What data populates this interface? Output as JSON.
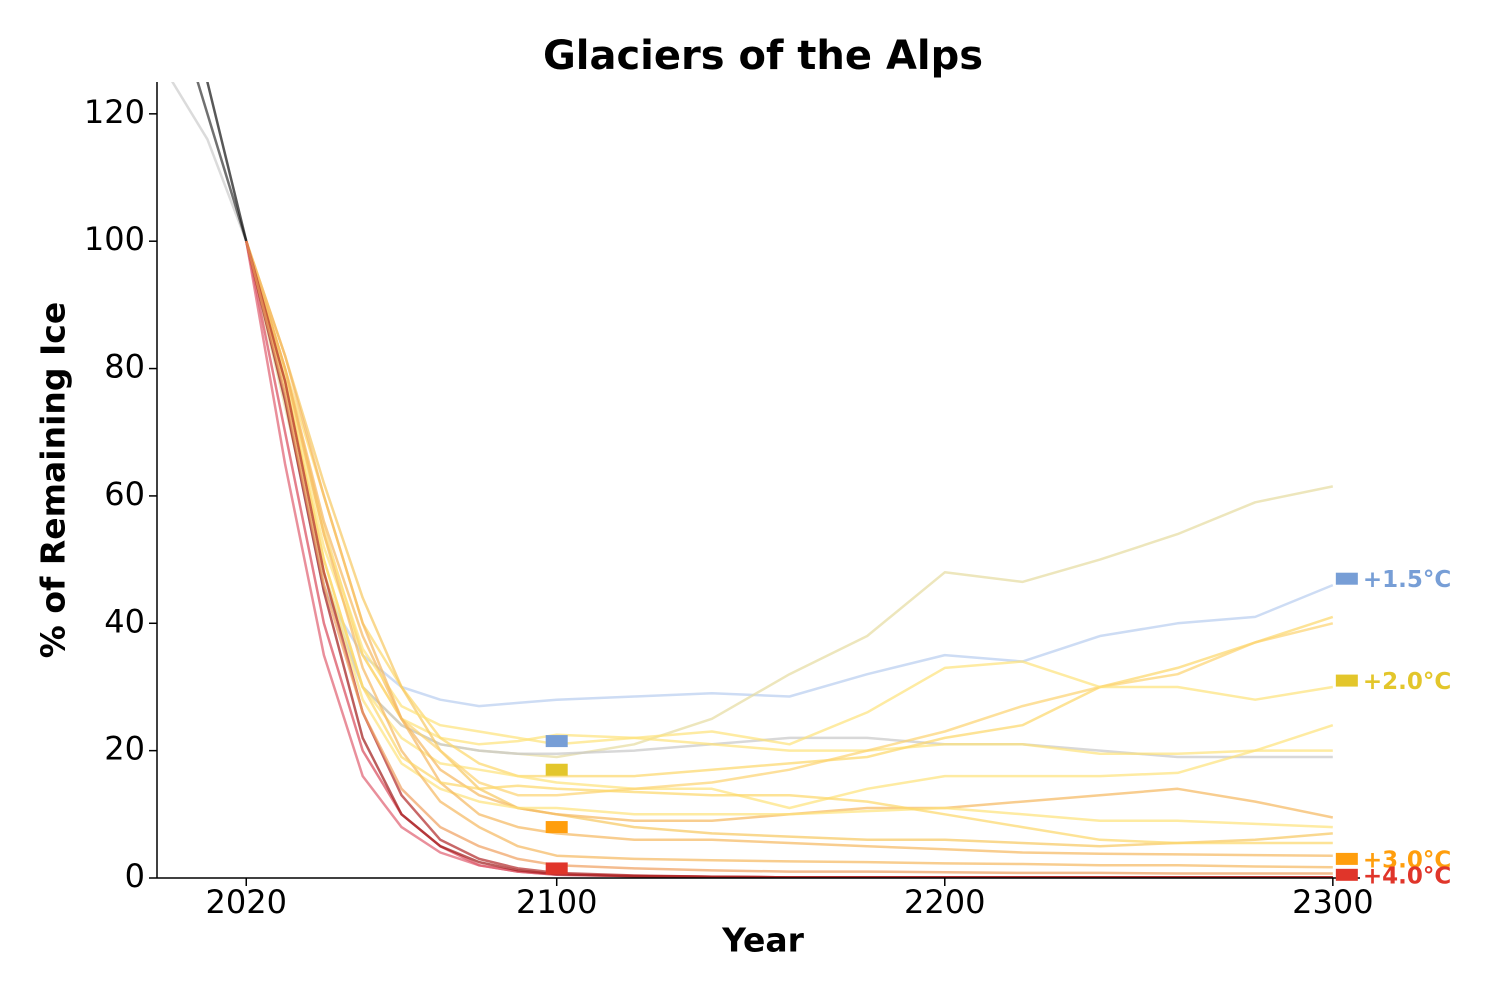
{
  "chart_data": {
    "type": "line",
    "title": "Glaciers of the Alps",
    "x_label": "Year",
    "y_label": "% of Remaining Ice",
    "xlim": [
      1997,
      2307
    ],
    "ylim": [
      0,
      125
    ],
    "xticks": [
      2020,
      2100,
      2200,
      2300
    ],
    "yticks": [
      0,
      20,
      40,
      60,
      80,
      100,
      120
    ],
    "x": [
      2000,
      2010,
      2020,
      2030,
      2040,
      2050,
      2060,
      2070,
      2080,
      2090,
      2100,
      2120,
      2140,
      2160,
      2180,
      2200,
      2220,
      2240,
      2260,
      2280,
      2300
    ],
    "series": [
      {
        "color": "#cccccc",
        "values": [
          126,
          116,
          100,
          null,
          null,
          null,
          null,
          null,
          null,
          null,
          null,
          null,
          null,
          null,
          null,
          null,
          null,
          null,
          null,
          null,
          null
        ]
      },
      {
        "color": "#333333",
        "values": [
          140,
          120,
          100,
          null,
          null,
          null,
          null,
          null,
          null,
          null,
          null,
          null,
          null,
          null,
          null,
          null,
          null,
          null,
          null,
          null,
          null
        ]
      },
      {
        "color": "#111111",
        "values": [
          150,
          125,
          100,
          null,
          null,
          null,
          null,
          null,
          null,
          null,
          null,
          null,
          null,
          null,
          null,
          null,
          null,
          null,
          null,
          null,
          null
        ]
      },
      {
        "color": "#b8cdf0",
        "values": [
          null,
          null,
          100,
          75,
          45,
          35,
          30,
          28,
          27,
          27.5,
          28,
          28.5,
          29,
          28.5,
          32,
          35,
          34,
          38,
          40,
          41,
          46
        ]
      },
      {
        "color": "#e6dca0",
        "values": [
          null,
          null,
          100,
          74,
          48,
          30,
          24,
          21,
          20,
          19.5,
          19,
          21,
          25,
          32,
          38,
          48,
          46.5,
          50,
          54,
          59,
          61.5
        ]
      },
      {
        "color": "#c8c8c8",
        "values": [
          null,
          null,
          100,
          76,
          46,
          30,
          24,
          21,
          20,
          19.5,
          19.5,
          20,
          21,
          22,
          22,
          21,
          21,
          20,
          19,
          19,
          19
        ]
      },
      {
        "color": "#fde27a",
        "values": [
          null,
          null,
          100,
          78,
          52,
          35,
          25,
          22,
          21,
          21.5,
          22.5,
          22,
          21,
          20,
          20,
          21,
          21,
          19.5,
          19.5,
          20,
          20
        ]
      },
      {
        "color": "#fcd76a",
        "values": [
          null,
          null,
          100,
          80,
          60,
          40,
          30,
          22,
          18,
          16,
          16,
          16,
          17,
          18,
          19,
          22,
          24,
          30,
          33,
          37,
          41
        ]
      },
      {
        "color": "#fde27a",
        "values": [
          null,
          null,
          100,
          78,
          50,
          30,
          22,
          18,
          17,
          16,
          15,
          14,
          14,
          11,
          14,
          16,
          16,
          16,
          16.5,
          20,
          24
        ]
      },
      {
        "color": "#f7c860",
        "values": [
          null,
          null,
          100,
          82,
          62,
          44,
          30,
          20,
          14,
          11,
          10,
          8,
          7,
          6.5,
          6,
          6,
          5.5,
          5,
          5.5,
          6,
          7
        ]
      },
      {
        "color": "#fcd370",
        "values": [
          null,
          null,
          100,
          80,
          55,
          35,
          25,
          20,
          15,
          13,
          13,
          14,
          15,
          17,
          20,
          23,
          27,
          30,
          32,
          37,
          40
        ]
      },
      {
        "color": "#f5b860",
        "values": [
          null,
          null,
          100,
          80,
          56,
          38,
          25,
          17,
          13,
          11,
          10,
          9,
          9,
          10,
          11,
          11,
          12,
          13,
          14,
          12,
          9.5
        ]
      },
      {
        "color": "#fde27a",
        "values": [
          null,
          null,
          100,
          77,
          48,
          28,
          18,
          14,
          12,
          11,
          11,
          10,
          10,
          10,
          10.5,
          11,
          10,
          9,
          9,
          8.5,
          8
        ]
      },
      {
        "color": "#fde27a",
        "values": [
          null,
          null,
          100,
          79,
          54,
          36,
          27,
          24,
          23,
          22,
          21,
          22,
          23,
          21,
          26,
          33,
          34,
          30,
          30,
          28,
          30
        ]
      },
      {
        "color": "#f5b860",
        "values": [
          null,
          null,
          100,
          80,
          54,
          33,
          20,
          12,
          8,
          5,
          3.5,
          3,
          2.8,
          2.6,
          2.5,
          2.3,
          2.2,
          2,
          2,
          1.8,
          1.7
        ]
      },
      {
        "color": "#f5b860",
        "values": [
          null,
          null,
          100,
          82,
          60,
          40,
          25,
          15,
          10,
          8,
          7,
          6,
          6,
          5.5,
          5,
          4.5,
          4,
          3.8,
          3.7,
          3.6,
          3.5
        ]
      },
      {
        "color": "#fcd76a",
        "values": [
          null,
          null,
          100,
          78,
          50,
          30,
          19,
          15,
          14,
          14.5,
          14,
          13.5,
          13,
          13,
          12,
          10,
          8,
          6,
          5.5,
          5.5,
          5.5
        ]
      },
      {
        "color": "#d9485a",
        "values": [
          null,
          null,
          100,
          70,
          40,
          20,
          10,
          5,
          2,
          1,
          0.5,
          0.3,
          0.2,
          0.1,
          0.1,
          0.1,
          0.1,
          0.1,
          0.1,
          0.1,
          0.1
        ]
      },
      {
        "color": "#e06070",
        "values": [
          null,
          null,
          100,
          65,
          35,
          16,
          8,
          4,
          2,
          1,
          0.5,
          0.3,
          0.2,
          0.1,
          0.1,
          0.1,
          0.1,
          0.1,
          0.1,
          0.1,
          0.1
        ]
      },
      {
        "color": "#a01818",
        "values": [
          null,
          null,
          100,
          75,
          45,
          22,
          10,
          5,
          2.5,
          1.2,
          0.6,
          0.3,
          0.2,
          0.1,
          0.1,
          0.1,
          0.1,
          0.1,
          0.1,
          0.1,
          0.1
        ]
      },
      {
        "color": "#b02828",
        "values": [
          null,
          null,
          100,
          78,
          48,
          26,
          13,
          6,
          3,
          1.5,
          0.8,
          0.4,
          0.2,
          0.1,
          0.1,
          0.1,
          0.1,
          0.1,
          0.1,
          0.1,
          0.1
        ]
      },
      {
        "color": "#f0a060",
        "values": [
          null,
          null,
          100,
          76,
          46,
          26,
          14,
          8,
          5,
          3,
          2,
          1.5,
          1.2,
          1,
          1,
          0.9,
          0.8,
          0.8,
          0.7,
          0.7,
          0.7
        ]
      }
    ],
    "scenario_years": [
      2100,
      2300
    ],
    "scenarios": [
      {
        "label": "+1.5°C",
        "color": "#779ed6",
        "values": [
          21.5,
          47
        ]
      },
      {
        "label": "+2.0°C",
        "color": "#e3c62b",
        "values": [
          17,
          31
        ]
      },
      {
        "label": "+3.0°C",
        "color": "#ff9e0d",
        "values": [
          8,
          3
        ]
      },
      {
        "label": "+4.0°C",
        "color": "#e0352a",
        "values": [
          1.5,
          0.5
        ]
      }
    ]
  }
}
